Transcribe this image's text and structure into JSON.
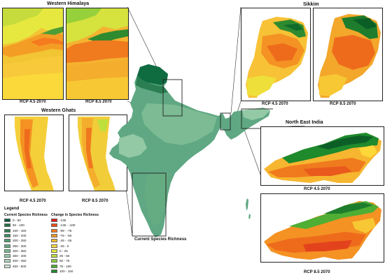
{
  "panels": {
    "western_himalaya": {
      "title": "Western Himalaya",
      "left_caption": "RCP 4.5 2070",
      "right_caption": "RCP 8.5 2070"
    },
    "sikkim": {
      "title": "Sikkim",
      "left_caption": "RCP 4.5 2070",
      "right_caption": "RCP 8.5 2070"
    },
    "western_ghats": {
      "title": "Western Ghats",
      "left_caption": "RCP 4.5 2070",
      "right_caption": "RCP 8.5 2070"
    },
    "north_east_india": {
      "title": "North East India",
      "top_caption": "RCP 4.5 2070",
      "bottom_caption": "RCP 8.5 2070"
    }
  },
  "main_map": {
    "caption": "Current Species Richness"
  },
  "legend": {
    "title": "Legend",
    "current_heading": "Current Species Richness",
    "change_heading": "Change in Species Richness",
    "current": [
      {
        "label": "0 - 50",
        "color": "#0b5c39"
      },
      {
        "label": "50 - 100",
        "color": "#1f7047"
      },
      {
        "label": "100 - 150",
        "color": "#2f7f55"
      },
      {
        "label": "150 - 200",
        "color": "#3f8e63"
      },
      {
        "label": "200 - 250",
        "color": "#529d72"
      },
      {
        "label": "250 - 300",
        "color": "#66ac82"
      },
      {
        "label": "300 - 350",
        "color": "#7cbb93"
      },
      {
        "label": "350 - 400",
        "color": "#94c9a6"
      },
      {
        "label": "400 - 450",
        "color": "#afd8bc"
      },
      {
        "label": "450 - 500",
        "color": "#cde7d4"
      }
    ],
    "change": [
      {
        "label": "-136",
        "color": "#e31a1c"
      },
      {
        "label": "-135 - -100",
        "color": "#ee4b1c"
      },
      {
        "label": "-99 - -75",
        "color": "#f57b1f"
      },
      {
        "label": "-75 - -50",
        "color": "#f89a24"
      },
      {
        "label": "-49 - -25",
        "color": "#fbb82c"
      },
      {
        "label": "-25 - 0",
        "color": "#fdd838"
      },
      {
        "label": "0 - 25",
        "color": "#e8e83c"
      },
      {
        "label": "26 - 50",
        "color": "#bfe03c"
      },
      {
        "label": "50 - 75",
        "color": "#8ccd3a"
      },
      {
        "label": "75 - 100",
        "color": "#4fae34"
      },
      {
        "label": "100 - 150",
        "color": "#1e8a2c"
      }
    ]
  },
  "colors": {
    "richness_base": "#5fa883",
    "richness_dark": "#0f6b40",
    "change_green": "#1e8a2c",
    "change_yellow": "#fdd838",
    "change_orange": "#f57b1f"
  }
}
